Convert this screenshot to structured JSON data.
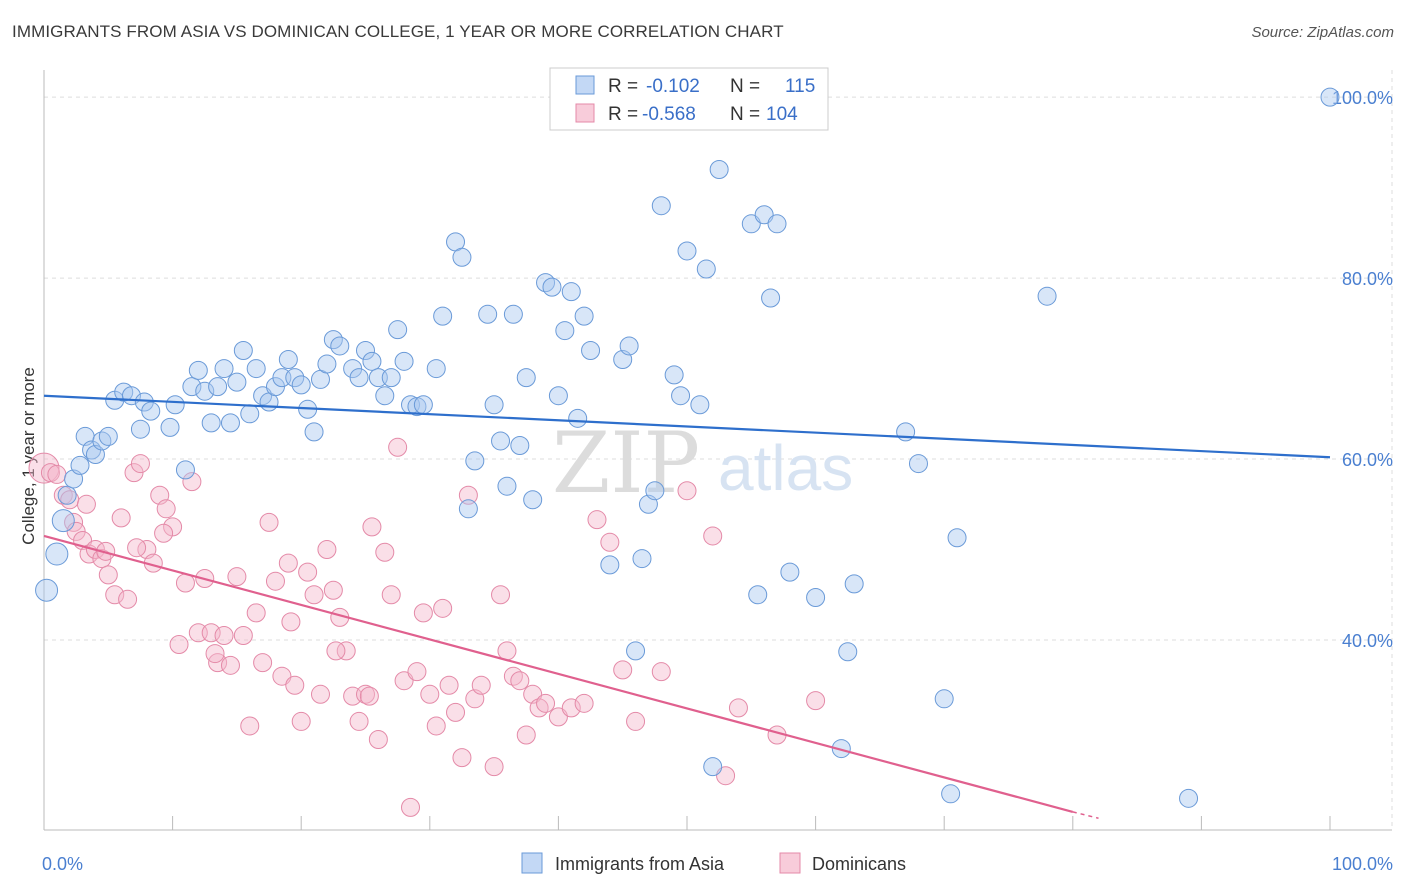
{
  "header": {
    "title": "IMMIGRANTS FROM ASIA VS DOMINICAN COLLEGE, 1 YEAR OR MORE CORRELATION CHART",
    "source": "Source: ZipAtlas.com"
  },
  "watermark": {
    "zip": "ZIP",
    "atlas": "atlas"
  },
  "legend": {
    "rows": [
      {
        "r_label": "R =",
        "r_value": "-0.102",
        "n_label": "N =",
        "n_value": "115"
      },
      {
        "r_label": "R =",
        "r_value": "-0.568",
        "n_label": "N =",
        "n_value": "104"
      }
    ]
  },
  "bottom_legend": [
    "Immigrants from Asia",
    "Dominicans"
  ],
  "colors": {
    "asia_fill": "#a9c8f0",
    "asia_stroke": "#6a9ad8",
    "asia_line": "#2e6fcc",
    "dom_fill": "#f5b8cc",
    "dom_stroke": "#e48aa8",
    "dom_line": "#e0608e",
    "grid": "#dddddd",
    "tick_label": "#4a7fd0"
  },
  "chart_data": {
    "type": "scatter",
    "title": "IMMIGRANTS FROM ASIA VS DOMINICAN COLLEGE, 1 YEAR OR MORE CORRELATION CHART",
    "xlabel": "",
    "ylabel": "College, 1 year or more",
    "xlim": [
      0,
      100
    ],
    "ylim": [
      19,
      103
    ],
    "x_tick_labels": [
      "0.0%",
      "100.0%"
    ],
    "y_ticks": [
      40,
      60,
      80,
      100
    ],
    "y_tick_labels": [
      "40.0%",
      "60.0%",
      "80.0%",
      "100.0%"
    ],
    "grid": true,
    "legend_position": "top-center",
    "series": [
      {
        "name": "Immigrants from Asia",
        "r": -0.102,
        "n": 115,
        "trend": [
          [
            0,
            67
          ],
          [
            100,
            60.2
          ]
        ],
        "points": [
          [
            0.2,
            45.5
          ],
          [
            1.0,
            49.5
          ],
          [
            1.5,
            53.2
          ],
          [
            1.8,
            56
          ],
          [
            2.3,
            57.8
          ],
          [
            2.8,
            59.3
          ],
          [
            3.2,
            62.5
          ],
          [
            3.7,
            61
          ],
          [
            4,
            60.5
          ],
          [
            4.5,
            62
          ],
          [
            5.0,
            62.5
          ],
          [
            5.5,
            66.5
          ],
          [
            6.2,
            67.4
          ],
          [
            6.8,
            67
          ],
          [
            7.5,
            63.3
          ],
          [
            7.8,
            66.3
          ],
          [
            8.3,
            65.3
          ],
          [
            9.8,
            63.5
          ],
          [
            10.2,
            66
          ],
          [
            11,
            58.8
          ],
          [
            11.5,
            68
          ],
          [
            12,
            69.8
          ],
          [
            12.5,
            67.5
          ],
          [
            13,
            64
          ],
          [
            13.5,
            68
          ],
          [
            14,
            70
          ],
          [
            14.5,
            64
          ],
          [
            15,
            68.5
          ],
          [
            15.5,
            72
          ],
          [
            16,
            65
          ],
          [
            16.5,
            70
          ],
          [
            17,
            67
          ],
          [
            17.5,
            66.3
          ],
          [
            18,
            68
          ],
          [
            18.5,
            69
          ],
          [
            19,
            71
          ],
          [
            19.5,
            69
          ],
          [
            20,
            68.2
          ],
          [
            20.5,
            65.5
          ],
          [
            21,
            63
          ],
          [
            21.5,
            68.8
          ],
          [
            22,
            70.5
          ],
          [
            22.5,
            73.2
          ],
          [
            23,
            72.5
          ],
          [
            24,
            70
          ],
          [
            24.5,
            69
          ],
          [
            25,
            72
          ],
          [
            25.5,
            70.8
          ],
          [
            26,
            69
          ],
          [
            26.5,
            67
          ],
          [
            27,
            69
          ],
          [
            27.5,
            74.3
          ],
          [
            28,
            70.8
          ],
          [
            28.5,
            66
          ],
          [
            29,
            65.8
          ],
          [
            29.5,
            66
          ],
          [
            30.5,
            70
          ],
          [
            31,
            75.8
          ],
          [
            32,
            84
          ],
          [
            32.5,
            82.3
          ],
          [
            33,
            54.5
          ],
          [
            33.5,
            59.8
          ],
          [
            34.5,
            76
          ],
          [
            35,
            66
          ],
          [
            35.5,
            62
          ],
          [
            36,
            57
          ],
          [
            36.5,
            76
          ],
          [
            37,
            61.5
          ],
          [
            37.5,
            69
          ],
          [
            38,
            55.5
          ],
          [
            39,
            79.5
          ],
          [
            39.5,
            79
          ],
          [
            40,
            67
          ],
          [
            40.5,
            74.2
          ],
          [
            41,
            78.5
          ],
          [
            41.5,
            64.5
          ],
          [
            42,
            75.8
          ],
          [
            42.5,
            72
          ],
          [
            44,
            48.3
          ],
          [
            45,
            71
          ],
          [
            45.5,
            72.5
          ],
          [
            46,
            38.8
          ],
          [
            46.5,
            49
          ],
          [
            47,
            55
          ],
          [
            47.5,
            56.5
          ],
          [
            48,
            88
          ],
          [
            49,
            69.3
          ],
          [
            49.5,
            67
          ],
          [
            50,
            83
          ],
          [
            51,
            66
          ],
          [
            51.5,
            81
          ],
          [
            52,
            26
          ],
          [
            52.5,
            92
          ],
          [
            55,
            86
          ],
          [
            55.5,
            45
          ],
          [
            56,
            87
          ],
          [
            56.5,
            77.8
          ],
          [
            57,
            86
          ],
          [
            58,
            47.5
          ],
          [
            60,
            44.7
          ],
          [
            62,
            28
          ],
          [
            62.5,
            38.7
          ],
          [
            63,
            46.2
          ],
          [
            67,
            63
          ],
          [
            68,
            59.5
          ],
          [
            70,
            33.5
          ],
          [
            70.5,
            23
          ],
          [
            71,
            51.3
          ],
          [
            78,
            78
          ],
          [
            89,
            22.5
          ],
          [
            100,
            100
          ]
        ]
      },
      {
        "name": "Dominicans",
        "r": -0.568,
        "n": 104,
        "trend": [
          [
            0,
            51.5
          ],
          [
            80,
            21
          ],
          [
            82,
            20.3
          ]
        ],
        "points": [
          [
            0,
            59
          ],
          [
            0.5,
            58.5
          ],
          [
            1,
            58.3
          ],
          [
            1.5,
            56
          ],
          [
            2,
            55.5
          ],
          [
            2.3,
            53
          ],
          [
            2.5,
            52
          ],
          [
            3,
            51
          ],
          [
            3.3,
            55
          ],
          [
            3.5,
            49.5
          ],
          [
            4,
            50
          ],
          [
            4.5,
            49
          ],
          [
            5,
            47.2
          ],
          [
            5.5,
            45
          ],
          [
            6,
            53.5
          ],
          [
            6.5,
            44.5
          ],
          [
            7,
            58.5
          ],
          [
            7.5,
            59.5
          ],
          [
            8,
            50
          ],
          [
            8.5,
            48.5
          ],
          [
            9,
            56
          ],
          [
            9.5,
            54.5
          ],
          [
            10,
            52.5
          ],
          [
            10.5,
            39.5
          ],
          [
            11,
            46.3
          ],
          [
            11.5,
            57.5
          ],
          [
            12,
            40.8
          ],
          [
            12.5,
            46.8
          ],
          [
            13,
            40.8
          ],
          [
            13.5,
            37.5
          ],
          [
            14,
            40.5
          ],
          [
            14.5,
            37.2
          ],
          [
            15,
            47
          ],
          [
            15.5,
            40.5
          ],
          [
            16,
            30.5
          ],
          [
            16.5,
            43
          ],
          [
            17,
            37.5
          ],
          [
            17.5,
            53
          ],
          [
            18,
            46.5
          ],
          [
            18.5,
            36
          ],
          [
            19,
            48.5
          ],
          [
            19.5,
            35
          ],
          [
            20,
            31
          ],
          [
            20.5,
            47.5
          ],
          [
            21,
            45
          ],
          [
            21.5,
            34
          ],
          [
            22,
            50
          ],
          [
            22.5,
            45.5
          ],
          [
            23,
            42.5
          ],
          [
            23.5,
            38.8
          ],
          [
            24,
            33.8
          ],
          [
            24.5,
            31
          ],
          [
            25,
            34
          ],
          [
            25.5,
            52.5
          ],
          [
            26,
            29
          ],
          [
            26.5,
            49.7
          ],
          [
            27,
            45
          ],
          [
            27.5,
            61.3
          ],
          [
            28,
            35.5
          ],
          [
            28.5,
            21.5
          ],
          [
            29,
            36.5
          ],
          [
            29.5,
            43
          ],
          [
            30,
            34
          ],
          [
            30.5,
            30.5
          ],
          [
            31,
            43.5
          ],
          [
            31.5,
            35
          ],
          [
            32,
            32
          ],
          [
            32.5,
            27
          ],
          [
            33,
            56
          ],
          [
            33.5,
            33.5
          ],
          [
            34,
            35
          ],
          [
            35,
            26
          ],
          [
            35.5,
            45
          ],
          [
            36,
            38.8
          ],
          [
            36.5,
            36
          ],
          [
            37,
            35.5
          ],
          [
            37.5,
            29.5
          ],
          [
            38,
            34
          ],
          [
            38.5,
            32.5
          ],
          [
            39,
            33
          ],
          [
            40,
            31.5
          ],
          [
            41,
            32.5
          ],
          [
            42,
            33
          ],
          [
            43,
            53.3
          ],
          [
            44,
            50.8
          ],
          [
            45,
            36.7
          ],
          [
            46,
            31
          ],
          [
            48,
            36.5
          ],
          [
            50,
            56.5
          ],
          [
            52,
            51.5
          ],
          [
            53,
            25
          ],
          [
            54,
            32.5
          ],
          [
            57,
            29.5
          ],
          [
            60,
            33.3
          ],
          [
            13.3,
            38.5
          ],
          [
            7.2,
            50.2
          ],
          [
            4.8,
            49.8
          ],
          [
            19.2,
            42
          ],
          [
            22.7,
            38.8
          ],
          [
            25.3,
            33.8
          ],
          [
            9.3,
            51.8
          ]
        ]
      }
    ]
  }
}
